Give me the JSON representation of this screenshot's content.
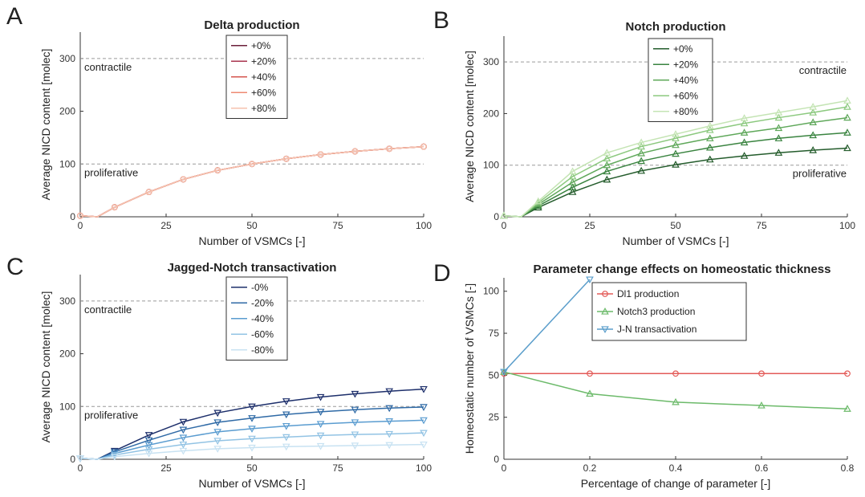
{
  "panels": [
    {
      "letter": "A",
      "title": "Delta production",
      "xlabel": "Number of VSMCs [-]",
      "ylabel": "Average NICD content [molec]",
      "xlim": [
        0,
        100
      ],
      "ylim": [
        0,
        350
      ],
      "xticks": [
        0,
        25,
        50,
        75,
        100
      ],
      "yticks": [
        0,
        100,
        200,
        300
      ],
      "legend_position": "top-center",
      "annotations": [
        {
          "text": "contractile",
          "y": 300,
          "side": "left"
        },
        {
          "text": "proliferative",
          "y": 100,
          "side": "left"
        }
      ]
    },
    {
      "letter": "B",
      "title": "Notch production",
      "xlabel": "Number of VSMCs [-]",
      "ylabel": "Average NICD content [molec]",
      "xlim": [
        0,
        100
      ],
      "ylim": [
        0,
        350
      ],
      "xticks": [
        0,
        25,
        50,
        75,
        100
      ],
      "yticks": [
        0,
        100,
        200,
        300
      ],
      "legend_position": "top-center",
      "annotations": [
        {
          "text": "contractile",
          "y": 300,
          "side": "right"
        },
        {
          "text": "proliferative",
          "y": 100,
          "side": "right"
        }
      ]
    },
    {
      "letter": "C",
      "title": "Jagged-Notch transactivation",
      "xlabel": "Number of VSMCs [-]",
      "ylabel": "Average NICD content [molec]",
      "xlim": [
        0,
        100
      ],
      "ylim": [
        0,
        350
      ],
      "xticks": [
        0,
        25,
        50,
        75,
        100
      ],
      "yticks": [
        0,
        100,
        200,
        300
      ],
      "legend_position": "top-center",
      "annotations": [
        {
          "text": "contractile",
          "y": 300,
          "side": "left"
        },
        {
          "text": "proliferative",
          "y": 100,
          "side": "left"
        }
      ]
    },
    {
      "letter": "D",
      "title": "Parameter change effects on homeostatic thickness",
      "xlabel": "Percentage of change of parameter [-]",
      "ylabel": "Homeostatic number of VSMCs [-]",
      "xlim": [
        0,
        0.8
      ],
      "ylim": [
        0,
        108
      ],
      "xticks": [
        0,
        0.2,
        0.4,
        0.6,
        0.8
      ],
      "yticks": [
        0,
        25,
        50,
        75,
        100
      ],
      "legend_position": "top-right",
      "annotations": []
    }
  ],
  "chart_data": [
    {
      "type": "line",
      "title": "Delta production",
      "xlabel": "Number of VSMCs [-]",
      "ylabel": "Average NICD content [molec]",
      "xlim": [
        0,
        100
      ],
      "ylim": [
        0,
        350
      ],
      "grid": false,
      "legend_position": "top-center",
      "reference_lines": [
        {
          "y": 300,
          "label": "contractile"
        },
        {
          "y": 100,
          "label": "proliferative"
        }
      ],
      "marker": "circle",
      "x": [
        0,
        5,
        10,
        20,
        30,
        40,
        50,
        60,
        70,
        80,
        90,
        100
      ],
      "series": [
        {
          "name": "+0%",
          "color": "#6b1f3a",
          "values": [
            2,
            0,
            18,
            47,
            71,
            88,
            100,
            110,
            118,
            124,
            129,
            133
          ]
        },
        {
          "name": "+20%",
          "color": "#a8344f",
          "values": [
            2,
            0,
            18,
            47,
            71,
            88,
            100,
            110,
            118,
            124,
            129,
            133
          ]
        },
        {
          "name": "+40%",
          "color": "#d5554f",
          "values": [
            2,
            0,
            18,
            47,
            71,
            88,
            100,
            110,
            118,
            124,
            129,
            133
          ]
        },
        {
          "name": "+60%",
          "color": "#ee8a72",
          "values": [
            2,
            0,
            18,
            47,
            71,
            88,
            100,
            110,
            118,
            124,
            129,
            133
          ]
        },
        {
          "name": "+80%",
          "color": "#f6c2ae",
          "values": [
            2,
            0,
            18,
            47,
            71,
            88,
            100,
            110,
            118,
            124,
            129,
            133
          ]
        }
      ]
    },
    {
      "type": "line",
      "title": "Notch production",
      "xlabel": "Number of VSMCs [-]",
      "ylabel": "Average NICD content [molec]",
      "xlim": [
        0,
        100
      ],
      "ylim": [
        0,
        350
      ],
      "grid": false,
      "legend_position": "top-center",
      "reference_lines": [
        {
          "y": 300,
          "label": "contractile"
        },
        {
          "y": 100,
          "label": "proliferative"
        }
      ],
      "marker": "triangle-up",
      "x": [
        0,
        5,
        10,
        20,
        30,
        40,
        50,
        60,
        70,
        80,
        90,
        100
      ],
      "series": [
        {
          "name": "+0%",
          "color": "#245c2c",
          "values": [
            2,
            0,
            18,
            48,
            72,
            89,
            101,
            111,
            118,
            124,
            129,
            133
          ]
        },
        {
          "name": "+20%",
          "color": "#3a8440",
          "values": [
            2,
            0,
            21,
            57,
            88,
            108,
            122,
            134,
            144,
            152,
            158,
            163
          ]
        },
        {
          "name": "+40%",
          "color": "#5fa85a",
          "values": [
            2,
            0,
            24,
            67,
            100,
            123,
            139,
            152,
            163,
            172,
            183,
            192
          ]
        },
        {
          "name": "+60%",
          "color": "#8cc97f",
          "values": [
            2,
            0,
            27,
            78,
            113,
            136,
            152,
            168,
            181,
            192,
            202,
            213
          ]
        },
        {
          "name": "+80%",
          "color": "#c4e4b4",
          "values": [
            2,
            0,
            30,
            88,
            124,
            144,
            160,
            176,
            191,
            202,
            213,
            225
          ]
        }
      ]
    },
    {
      "type": "line",
      "title": "Jagged-Notch transactivation",
      "xlabel": "Number of VSMCs [-]",
      "ylabel": "Average NICD content [molec]",
      "xlim": [
        0,
        100
      ],
      "ylim": [
        0,
        350
      ],
      "grid": false,
      "legend_position": "top-center",
      "reference_lines": [
        {
          "y": 300,
          "label": "contractile"
        },
        {
          "y": 100,
          "label": "proliferative"
        }
      ],
      "marker": "triangle-down",
      "x": [
        0,
        5,
        10,
        20,
        30,
        40,
        50,
        60,
        70,
        80,
        90,
        100
      ],
      "series": [
        {
          "name": "-0%",
          "color": "#1d2f6b",
          "values": [
            2,
            0,
            16,
            46,
            71,
            88,
            100,
            110,
            118,
            124,
            129,
            133
          ]
        },
        {
          "name": "-20%",
          "color": "#2f6aa6",
          "values": [
            2,
            0,
            14,
            36,
            56,
            70,
            78,
            85,
            90,
            94,
            97,
            99
          ]
        },
        {
          "name": "-40%",
          "color": "#5a9cd0",
          "values": [
            2,
            0,
            11,
            27,
            41,
            52,
            58,
            63,
            67,
            70,
            72,
            74
          ]
        },
        {
          "name": "-60%",
          "color": "#92c3e4",
          "values": [
            2,
            0,
            8,
            19,
            28,
            35,
            39,
            42,
            45,
            47,
            48,
            50
          ]
        },
        {
          "name": "-80%",
          "color": "#c8e2f2",
          "values": [
            2,
            0,
            5,
            11,
            16,
            20,
            22,
            24,
            25,
            26,
            27,
            28
          ]
        }
      ]
    },
    {
      "type": "line",
      "title": "Parameter change effects on homeostatic thickness",
      "xlabel": "Percentage of change of parameter [-]",
      "ylabel": "Homeostatic number of VSMCs [-]",
      "xlim": [
        0,
        0.8
      ],
      "ylim": [
        0,
        108
      ],
      "grid": false,
      "legend_position": "top-right",
      "series": [
        {
          "name": "Dl1 production",
          "color": "#e35b58",
          "marker": "circle",
          "x": [
            0,
            0.2,
            0.4,
            0.6,
            0.8
          ],
          "values": [
            51,
            51,
            51,
            51,
            51
          ]
        },
        {
          "name": "Notch3 production",
          "color": "#6cba6a",
          "marker": "triangle-up",
          "x": [
            0,
            0.2,
            0.4,
            0.6,
            0.8
          ],
          "values": [
            52,
            39,
            34,
            32,
            30
          ]
        },
        {
          "name": "J-N transactivation",
          "color": "#5b9ecb",
          "marker": "triangle-down",
          "x": [
            0,
            0.2
          ],
          "values": [
            52,
            107
          ]
        }
      ]
    }
  ]
}
